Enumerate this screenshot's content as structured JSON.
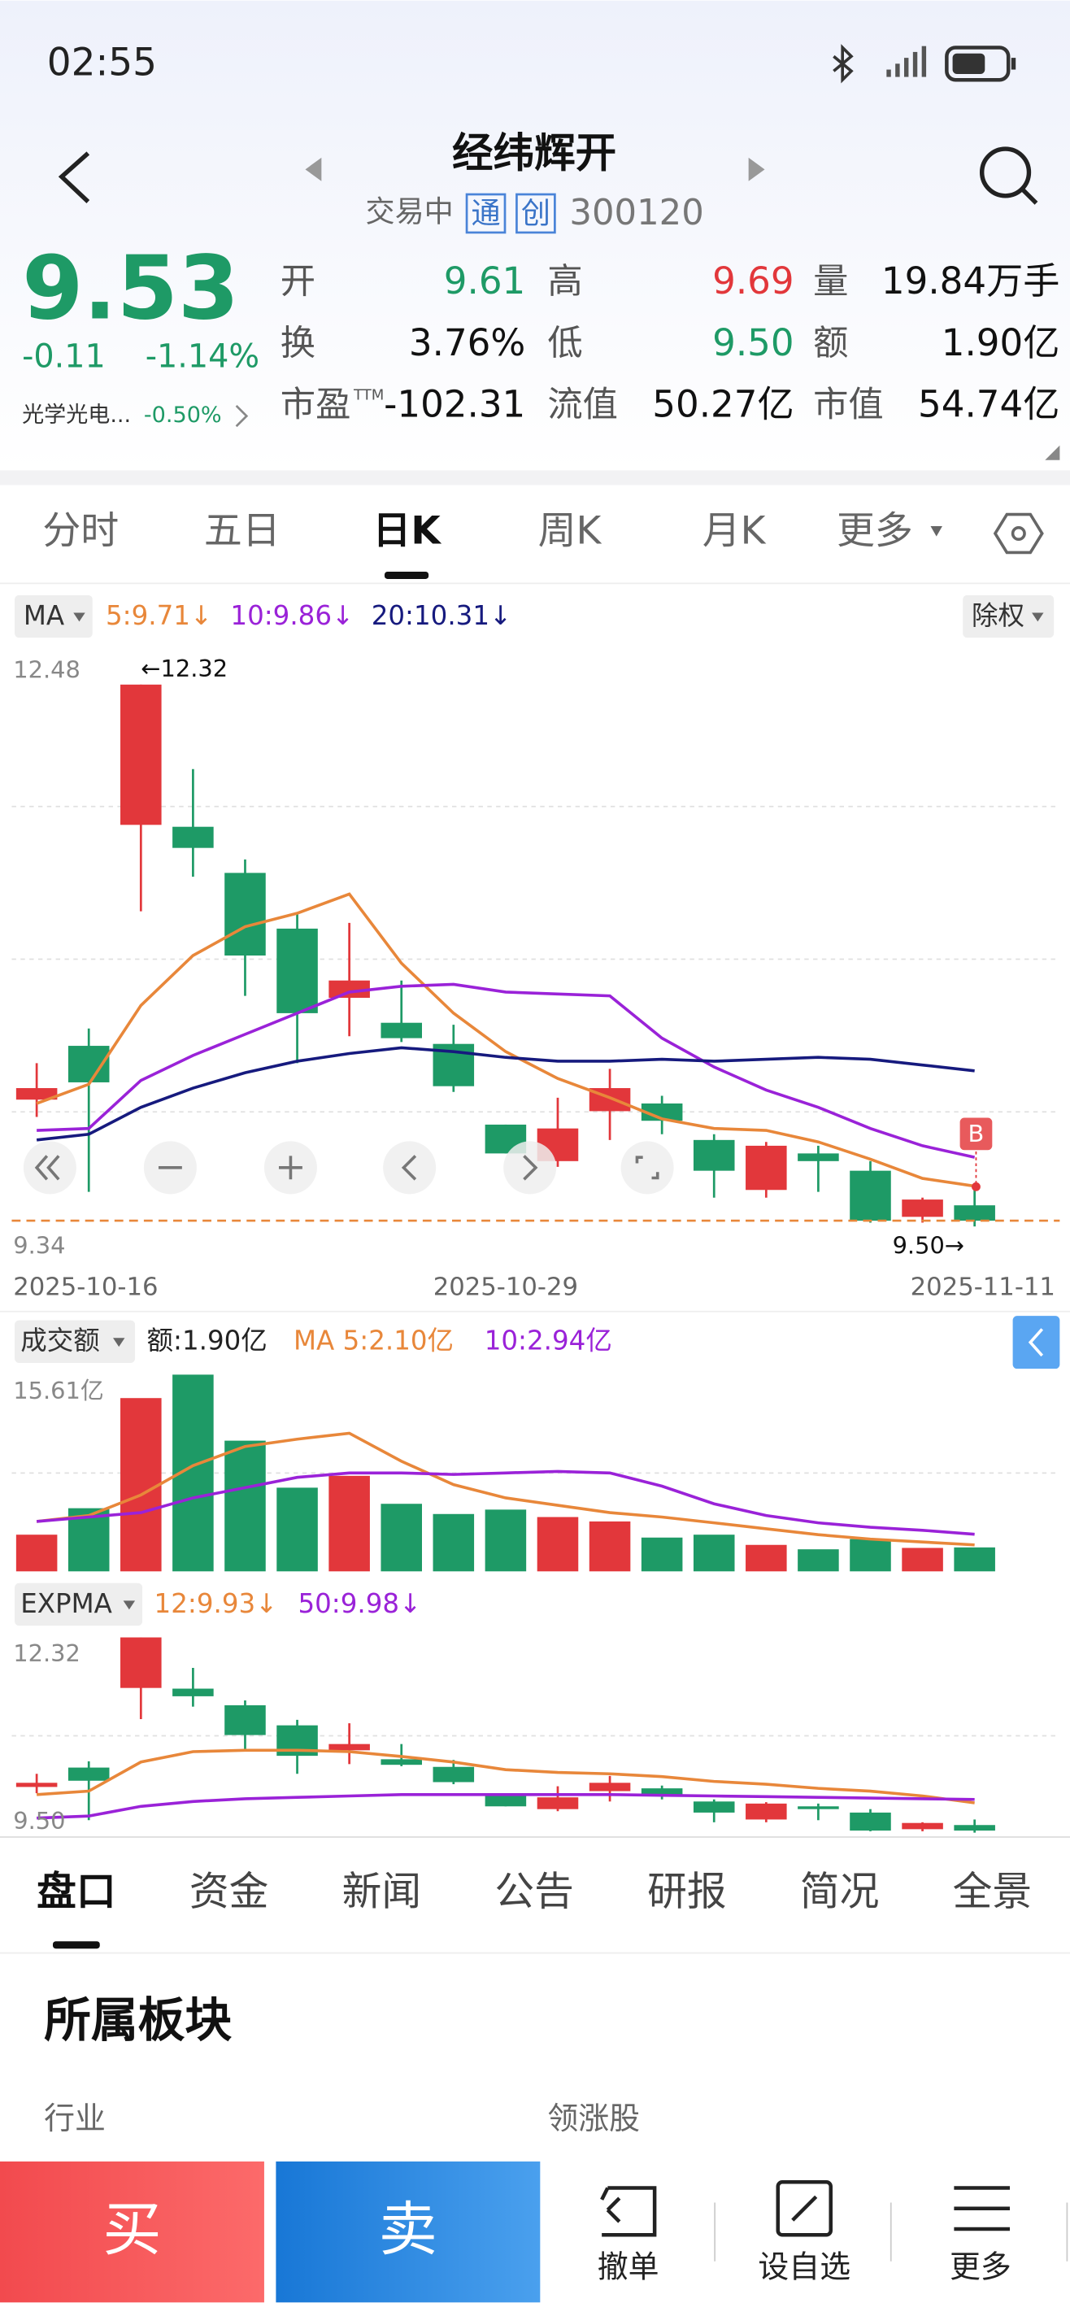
{
  "status": {
    "time": "02:55"
  },
  "header": {
    "title": "经纬辉开",
    "state": "交易中",
    "badges": [
      "通",
      "创"
    ],
    "code": "300120"
  },
  "quote": {
    "price": "9.53",
    "change": "-0.11",
    "change_pct": "-1.14%",
    "sector": "光学光电...",
    "sector_change": "-0.50%",
    "fields": [
      {
        "label": "开",
        "value": "9.61",
        "color": "#1e9a66"
      },
      {
        "label": "高",
        "value": "9.69",
        "color": "#e2373b"
      },
      {
        "label": "量",
        "value": "19.84万手",
        "color": "#111111"
      },
      {
        "label": "换",
        "value": "3.76%",
        "color": "#111111"
      },
      {
        "label": "低",
        "value": "9.50",
        "color": "#1e9a66"
      },
      {
        "label": "额",
        "value": "1.90亿",
        "color": "#111111"
      },
      {
        "label": "市盈",
        "sup": "TTM",
        "value": "-102.31",
        "color": "#111111"
      },
      {
        "label": "流值",
        "value": "50.27亿",
        "color": "#111111"
      },
      {
        "label": "市值",
        "value": "54.74亿",
        "color": "#111111"
      }
    ]
  },
  "tabs": {
    "items": [
      "分时",
      "五日",
      "日K",
      "周K",
      "月K"
    ],
    "more": "更多",
    "selected": 2
  },
  "chart_data": [
    {
      "type": "candlestick",
      "indicator": "MA",
      "right_button": "除权",
      "up_color": "#e2373b",
      "down_color": "#1e9a66",
      "categories": [
        "2025-10-16",
        null,
        null,
        null,
        null,
        null,
        null,
        null,
        null,
        "2025-10-29",
        null,
        null,
        null,
        null,
        null,
        null,
        null,
        null,
        "2025-11-11"
      ],
      "candles": {
        "open": [
          10.16,
          10.44,
          11.59,
          11.58,
          11.34,
          11.05,
          10.69,
          10.56,
          10.45,
          10.03,
          9.84,
          10.1,
          10.14,
          9.95,
          9.69,
          9.88,
          9.79,
          9.55,
          9.61
        ],
        "high": [
          10.35,
          10.53,
          12.32,
          11.88,
          11.41,
          11.13,
          11.08,
          10.78,
          10.55,
          10.03,
          10.17,
          10.32,
          10.18,
          9.98,
          9.94,
          9.92,
          9.84,
          9.65,
          9.69
        ],
        "low": [
          10.07,
          9.68,
          11.14,
          11.32,
          10.7,
          10.35,
          10.49,
          10.46,
          10.2,
          9.88,
          9.81,
          9.95,
          9.98,
          9.65,
          9.65,
          9.68,
          9.52,
          9.52,
          9.5
        ],
        "close": [
          10.22,
          10.25,
          12.32,
          11.47,
          10.91,
          10.61,
          10.78,
          10.48,
          10.23,
          9.88,
          10.01,
          10.22,
          10.05,
          9.79,
          9.92,
          9.84,
          9.53,
          9.64,
          9.53
        ]
      },
      "series": [
        {
          "name": "5:9.71↓",
          "color": "#e8873a",
          "values": [
            10.14,
            10.24,
            10.65,
            10.91,
            11.06,
            11.13,
            11.23,
            10.87,
            10.61,
            10.41,
            10.27,
            10.17,
            10.06,
            10.01,
            10.0,
            9.94,
            9.85,
            9.75,
            9.71
          ]
        },
        {
          "name": "10:9.86↓",
          "color": "#9a22d8",
          "values": [
            10.0,
            10.01,
            10.26,
            10.39,
            10.5,
            10.61,
            10.72,
            10.75,
            10.76,
            10.72,
            10.71,
            10.7,
            10.48,
            10.33,
            10.21,
            10.12,
            10.01,
            9.92,
            9.86
          ]
        },
        {
          "name": "20:10.31↓",
          "color": "#161a7e",
          "values": [
            9.95,
            9.98,
            10.12,
            10.22,
            10.3,
            10.36,
            10.4,
            10.43,
            10.41,
            10.38,
            10.36,
            10.36,
            10.37,
            10.36,
            10.37,
            10.38,
            10.37,
            10.34,
            10.31
          ]
        }
      ],
      "ylim": [
        9.34,
        12.48
      ],
      "yticks": [
        12.48,
        9.34
      ],
      "price_line": 9.53,
      "annotations": [
        "←12.32",
        "9.50→"
      ],
      "marker": "B"
    },
    {
      "type": "bar",
      "indicator": "成交额",
      "label": "额:1.90亿",
      "up_color": "#e2373b",
      "down_color": "#1e9a66",
      "values": [
        2.91,
        5.01,
        13.75,
        15.61,
        10.37,
        6.64,
        7.58,
        5.36,
        4.55,
        4.9,
        4.31,
        3.96,
        2.68,
        2.91,
        2.1,
        1.75,
        2.56,
        1.86,
        1.9
      ],
      "series": [
        {
          "name": "MA 5:2.10亿",
          "color": "#e8873a",
          "values": [
            3.96,
            4.43,
            6.06,
            8.39,
            9.91,
            10.49,
            10.96,
            8.74,
            6.88,
            5.83,
            5.24,
            4.66,
            4.31,
            3.85,
            3.38,
            2.91,
            2.56,
            2.33,
            2.1
          ]
        },
        {
          "name": "10:2.94亿",
          "color": "#9a22d8",
          "values": [
            3.96,
            4.31,
            4.66,
            5.83,
            6.64,
            7.46,
            7.81,
            7.81,
            7.69,
            7.81,
            7.93,
            7.81,
            6.76,
            5.36,
            4.43,
            3.85,
            3.5,
            3.26,
            2.94
          ]
        }
      ],
      "ylim": [
        0,
        15.61
      ],
      "yticks": [
        {
          "value": 15.61,
          "label": "15.61亿"
        }
      ]
    },
    {
      "type": "expma",
      "indicator": "EXPMA",
      "series": [
        {
          "name": "12:9.93↓",
          "color": "#e8873a",
          "values": [
            10.05,
            10.1,
            10.52,
            10.67,
            10.69,
            10.69,
            10.67,
            10.6,
            10.52,
            10.41,
            10.37,
            10.35,
            10.31,
            10.24,
            10.2,
            10.14,
            10.1,
            10.03,
            9.93
          ]
        },
        {
          "name": "50:9.98↓",
          "color": "#9a22d8",
          "values": [
            9.71,
            9.74,
            9.88,
            9.95,
            9.99,
            10.01,
            10.03,
            10.05,
            10.05,
            10.05,
            10.05,
            10.05,
            10.04,
            10.03,
            10.02,
            10.01,
            10.0,
            9.99,
            9.98
          ]
        }
      ],
      "ylim": [
        9.5,
        12.32
      ],
      "yticks": [
        12.32,
        {
          "value": 9.5,
          "label": "9.50"
        }
      ]
    }
  ],
  "bottom_tabs": {
    "items": [
      "盘口",
      "资金",
      "新闻",
      "公告",
      "研报",
      "简况",
      "全景"
    ],
    "selected": 0
  },
  "section": {
    "title": "所属板块",
    "columns": [
      "行业",
      "领涨股"
    ]
  },
  "actions": {
    "buy": "买",
    "sell": "卖",
    "items": [
      "撤单",
      "设自选",
      "更多"
    ]
  }
}
